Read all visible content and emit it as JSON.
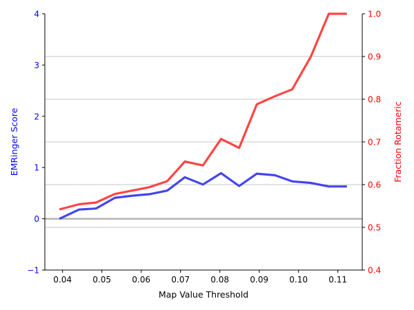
{
  "chart_data": {
    "type": "line",
    "xlabel": "Map Value Threshold",
    "ylabel_left": "EMRinger Score",
    "ylabel_right": "Fraction Rotameric",
    "xlim": [
      0.0355,
      0.1162
    ],
    "ylim_left": [
      -1,
      4
    ],
    "ylim_right": [
      0.4,
      1.0
    ],
    "x_ticks": [
      0.04,
      0.05,
      0.06,
      0.07,
      0.08,
      0.09,
      0.1,
      0.11
    ],
    "x_tick_labels": [
      "0.04",
      "0.05",
      "0.06",
      "0.07",
      "0.08",
      "0.09",
      "0.10",
      "0.11"
    ],
    "left_ticks": [
      -1,
      0,
      1,
      2,
      3,
      4
    ],
    "left_tick_labels": [
      "−1",
      "0",
      "1",
      "2",
      "3",
      "4"
    ],
    "right_ticks": [
      0.4,
      0.5,
      0.6,
      0.7,
      0.8,
      0.9,
      1.0
    ],
    "right_tick_labels": [
      "0.4",
      "0.5",
      "0.6",
      "0.7",
      "0.8",
      "0.9",
      "1.0"
    ],
    "grid": "horizontal lines at right-axis ticks",
    "zero_line": 0,
    "x": [
      0.0392,
      0.0442,
      0.0485,
      0.0533,
      0.0577,
      0.0621,
      0.0666,
      0.0711,
      0.0757,
      0.0803,
      0.0849,
      0.0894,
      0.094,
      0.0984,
      0.1031,
      0.1077,
      0.1123
    ],
    "series": [
      {
        "axis": "left",
        "color": "#4444ee",
        "values": [
          0.0,
          0.18,
          0.2,
          0.41,
          0.45,
          0.48,
          0.55,
          0.81,
          0.67,
          0.89,
          0.64,
          0.88,
          0.85,
          0.73,
          0.7,
          0.63,
          0.63
        ]
      },
      {
        "axis": "right",
        "color": "#ff4444",
        "values": [
          0.542,
          0.554,
          0.558,
          0.578,
          0.586,
          0.594,
          0.608,
          0.654,
          0.645,
          0.707,
          0.686,
          0.788,
          0.807,
          0.823,
          0.899,
          1.0,
          1.0
        ]
      }
    ]
  }
}
